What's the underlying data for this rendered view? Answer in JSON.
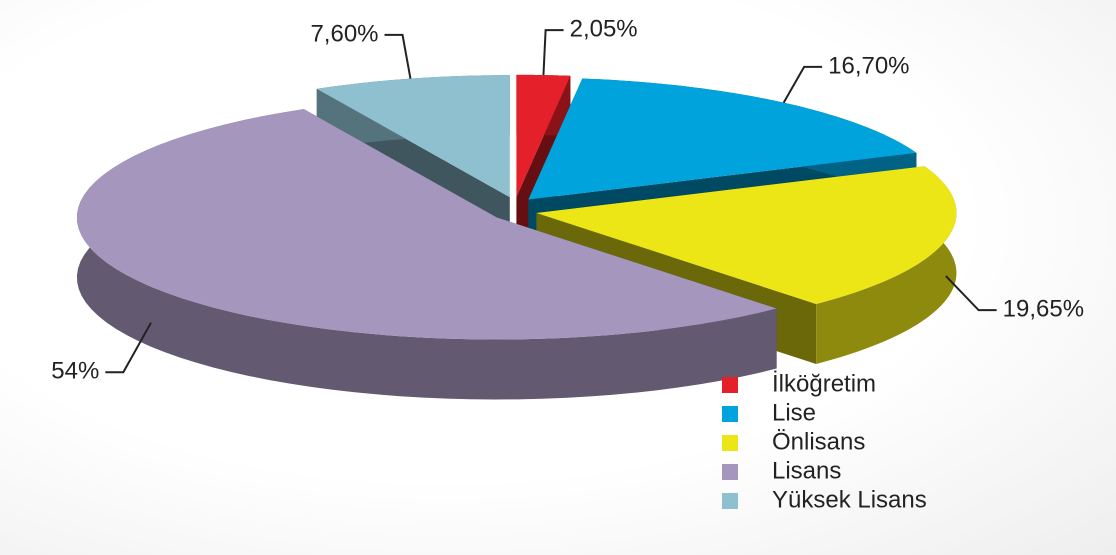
{
  "chart_data": {
    "type": "pie3d",
    "categories": [
      "İlköğretim",
      "Lise",
      "Önlisans",
      "Lisans",
      "Yüksek Lisans"
    ],
    "values": [
      2.05,
      16.7,
      19.65,
      54,
      7.6
    ],
    "value_labels": [
      "2,05%",
      "16,70%",
      "19,65%",
      "54%",
      "7,60%"
    ],
    "colors": [
      "#e4202a",
      "#00a3dc",
      "#ede616",
      "#a596bd",
      "#8ec0d0"
    ],
    "legend": "bottom-right"
  }
}
